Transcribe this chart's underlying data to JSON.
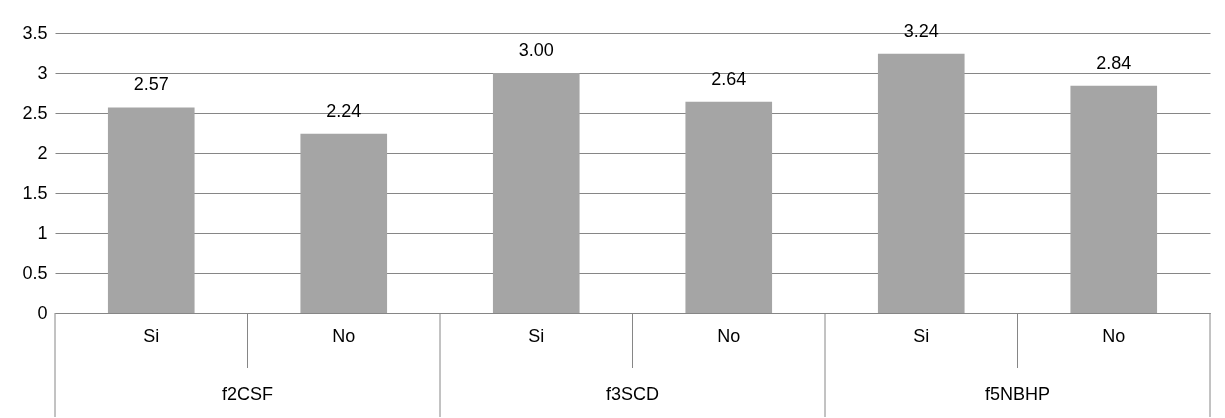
{
  "chart_data": {
    "type": "bar",
    "categories": [
      "Si",
      "No",
      "Si",
      "No",
      "Si",
      "No"
    ],
    "values": [
      2.57,
      2.24,
      3.0,
      2.64,
      3.24,
      2.84
    ],
    "value_labels": [
      "2.57",
      "2.24",
      "3.00",
      "2.64",
      "3.24",
      "2.84"
    ],
    "color": "#a5a5a5",
    "ylim": [
      0,
      3.5
    ],
    "yticks": [
      0,
      0.5,
      1,
      1.5,
      2,
      2.5,
      3,
      3.5
    ],
    "grid": "y",
    "annotations": [
      "f2CSF",
      "f3SCD",
      "f5NBHP"
    ]
  }
}
